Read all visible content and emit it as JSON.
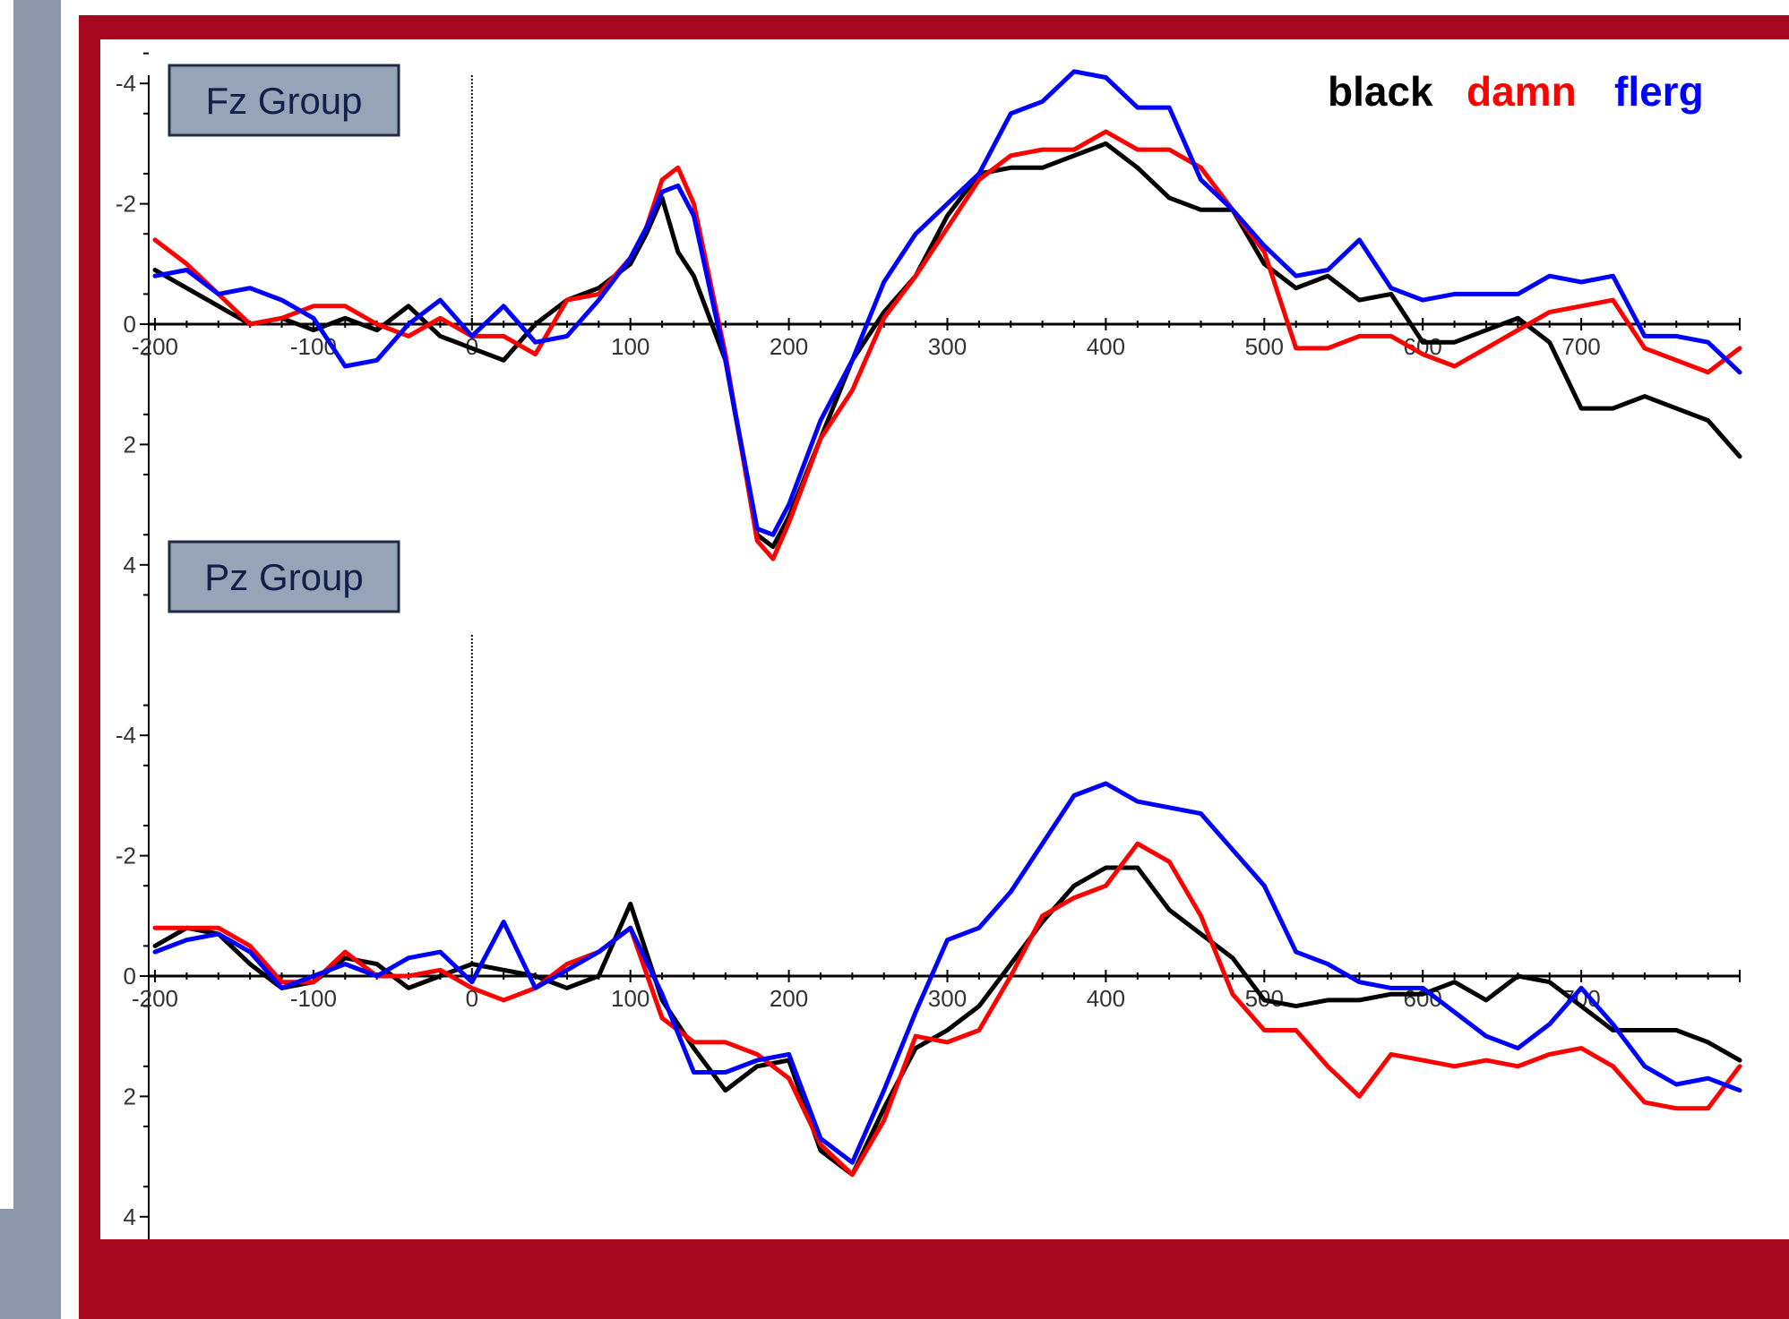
{
  "chart_data": [
    {
      "type": "line",
      "panel_label": "Fz Group",
      "xlim": [
        -200,
        800
      ],
      "ylim": [
        -4.5,
        4.5
      ],
      "y_inverted": true,
      "xticks": [
        -200,
        -100,
        0,
        100,
        200,
        300,
        400,
        500,
        600,
        700
      ],
      "xtick_labels": [
        "-200",
        "-100",
        "0",
        "100",
        "200",
        "300",
        "400",
        "500",
        "600",
        "700"
      ],
      "yticks": [
        -4,
        -2,
        0,
        2,
        4
      ],
      "ytick_labels": [
        "-4",
        "-2",
        "0",
        "2",
        "4"
      ],
      "legend_placement": "top-right",
      "series": [
        {
          "name": "black",
          "color": "#000000",
          "x": [
            -200,
            -180,
            -160,
            -140,
            -120,
            -100,
            -80,
            -60,
            -40,
            -20,
            0,
            20,
            40,
            60,
            80,
            100,
            110,
            120,
            130,
            140,
            160,
            180,
            190,
            200,
            220,
            240,
            260,
            280,
            300,
            320,
            340,
            360,
            380,
            400,
            420,
            440,
            460,
            480,
            500,
            520,
            540,
            560,
            580,
            600,
            620,
            640,
            660,
            680,
            700,
            720,
            740,
            760,
            780,
            800
          ],
          "y": [
            -0.9,
            -0.6,
            -0.3,
            0.0,
            -0.1,
            0.1,
            -0.1,
            0.1,
            -0.3,
            0.2,
            0.4,
            0.6,
            0.0,
            -0.4,
            -0.6,
            -1.0,
            -1.5,
            -2.1,
            -1.2,
            -0.8,
            0.6,
            3.5,
            3.7,
            3.2,
            1.9,
            0.6,
            -0.2,
            -0.8,
            -1.8,
            -2.5,
            -2.6,
            -2.6,
            -2.8,
            -3.0,
            -2.6,
            -2.1,
            -1.9,
            -1.9,
            -1.0,
            -0.6,
            -0.8,
            -0.4,
            -0.5,
            0.3,
            0.3,
            0.1,
            -0.1,
            0.3,
            1.4,
            1.4,
            1.2,
            1.4,
            1.6,
            2.2
          ]
        },
        {
          "name": "damn",
          "color": "#ff0000",
          "x": [
            -200,
            -180,
            -160,
            -140,
            -120,
            -100,
            -80,
            -60,
            -40,
            -20,
            0,
            20,
            40,
            60,
            80,
            100,
            110,
            120,
            130,
            140,
            160,
            180,
            190,
            200,
            220,
            240,
            260,
            280,
            300,
            320,
            340,
            360,
            380,
            400,
            420,
            440,
            460,
            480,
            500,
            520,
            540,
            560,
            580,
            600,
            620,
            640,
            660,
            680,
            700,
            720,
            740,
            760,
            780,
            800
          ],
          "y": [
            -1.4,
            -1.0,
            -0.5,
            0.0,
            -0.1,
            -0.3,
            -0.3,
            0.0,
            0.2,
            -0.1,
            0.2,
            0.2,
            0.5,
            -0.4,
            -0.5,
            -1.1,
            -1.6,
            -2.4,
            -2.6,
            -2.0,
            0.5,
            3.6,
            3.9,
            3.3,
            1.9,
            1.1,
            -0.1,
            -0.8,
            -1.6,
            -2.4,
            -2.8,
            -2.9,
            -2.9,
            -3.2,
            -2.9,
            -2.9,
            -2.6,
            -1.9,
            -1.2,
            0.4,
            0.4,
            0.2,
            0.2,
            0.5,
            0.7,
            0.4,
            0.1,
            -0.2,
            -0.3,
            -0.4,
            0.4,
            0.6,
            0.8,
            0.4
          ]
        },
        {
          "name": "flerg",
          "color": "#0000ff",
          "x": [
            -200,
            -180,
            -160,
            -140,
            -120,
            -100,
            -80,
            -60,
            -40,
            -20,
            0,
            20,
            40,
            60,
            80,
            100,
            110,
            120,
            130,
            140,
            160,
            180,
            190,
            200,
            220,
            240,
            260,
            280,
            300,
            320,
            340,
            360,
            380,
            400,
            420,
            440,
            460,
            480,
            500,
            520,
            540,
            560,
            580,
            600,
            620,
            640,
            660,
            680,
            700,
            720,
            740,
            760,
            780,
            800
          ],
          "y": [
            -0.8,
            -0.9,
            -0.5,
            -0.6,
            -0.4,
            -0.1,
            0.7,
            0.6,
            0.0,
            -0.4,
            0.2,
            -0.3,
            0.3,
            0.2,
            -0.4,
            -1.1,
            -1.6,
            -2.2,
            -2.3,
            -1.8,
            0.6,
            3.4,
            3.5,
            3.0,
            1.6,
            0.6,
            -0.7,
            -1.5,
            -2.0,
            -2.5,
            -3.5,
            -3.7,
            -4.2,
            -4.1,
            -3.6,
            -3.6,
            -2.4,
            -1.9,
            -1.3,
            -0.8,
            -0.9,
            -1.4,
            -0.6,
            -0.4,
            -0.5,
            -0.5,
            -0.5,
            -0.8,
            -0.7,
            -0.8,
            0.2,
            0.2,
            0.3,
            0.8
          ]
        }
      ]
    },
    {
      "type": "line",
      "panel_label": "Pz Group",
      "xlim": [
        -200,
        800
      ],
      "ylim": [
        -4.5,
        4.5
      ],
      "y_inverted": true,
      "xticks": [
        -200,
        -100,
        0,
        100,
        200,
        300,
        400,
        500,
        600,
        700
      ],
      "xtick_labels": [
        "-200",
        "-100",
        "0",
        "100",
        "200",
        "300",
        "400",
        "500",
        "600",
        "700"
      ],
      "yticks": [
        -4,
        -2,
        0,
        2,
        4
      ],
      "ytick_labels": [
        "-4",
        "-2",
        "0",
        "2",
        "4"
      ],
      "series": [
        {
          "name": "black",
          "color": "#000000",
          "x": [
            -200,
            -180,
            -160,
            -140,
            -120,
            -100,
            -80,
            -60,
            -40,
            -20,
            0,
            20,
            40,
            60,
            80,
            100,
            120,
            140,
            160,
            180,
            200,
            220,
            240,
            260,
            280,
            300,
            320,
            340,
            360,
            380,
            400,
            420,
            440,
            460,
            480,
            500,
            520,
            540,
            560,
            580,
            600,
            620,
            640,
            660,
            680,
            700,
            720,
            740,
            760,
            780,
            800
          ],
          "y": [
            -0.5,
            -0.8,
            -0.7,
            -0.2,
            0.2,
            0.1,
            -0.3,
            -0.2,
            0.2,
            0.0,
            -0.2,
            -0.1,
            0.0,
            0.2,
            0.0,
            -1.2,
            0.4,
            1.2,
            1.9,
            1.5,
            1.4,
            2.9,
            3.3,
            2.2,
            1.2,
            0.9,
            0.5,
            -0.2,
            -0.9,
            -1.5,
            -1.8,
            -1.8,
            -1.1,
            -0.7,
            -0.3,
            0.4,
            0.5,
            0.4,
            0.4,
            0.3,
            0.3,
            0.1,
            0.4,
            0.0,
            0.1,
            0.5,
            0.9,
            0.9,
            0.9,
            1.1,
            1.4
          ]
        },
        {
          "name": "damn",
          "color": "#ff0000",
          "x": [
            -200,
            -180,
            -160,
            -140,
            -120,
            -100,
            -80,
            -60,
            -40,
            -20,
            0,
            20,
            40,
            60,
            80,
            100,
            120,
            140,
            160,
            180,
            200,
            220,
            240,
            260,
            280,
            300,
            320,
            340,
            360,
            380,
            400,
            420,
            440,
            460,
            480,
            500,
            520,
            540,
            560,
            580,
            600,
            620,
            640,
            660,
            680,
            700,
            720,
            740,
            760,
            780,
            800
          ],
          "y": [
            -0.8,
            -0.8,
            -0.8,
            -0.5,
            0.1,
            0.1,
            -0.4,
            0.0,
            0.0,
            -0.1,
            0.2,
            0.4,
            0.2,
            -0.2,
            -0.4,
            -0.8,
            0.7,
            1.1,
            1.1,
            1.3,
            1.7,
            2.8,
            3.3,
            2.4,
            1.0,
            1.1,
            0.9,
            0.0,
            -1.0,
            -1.3,
            -1.5,
            -2.2,
            -1.9,
            -1.0,
            0.3,
            0.9,
            0.9,
            1.5,
            2.0,
            1.3,
            1.4,
            1.5,
            1.4,
            1.5,
            1.3,
            1.2,
            1.5,
            2.1,
            2.2,
            2.2,
            1.5
          ]
        },
        {
          "name": "flerg",
          "color": "#0000ff",
          "x": [
            -200,
            -180,
            -160,
            -140,
            -120,
            -100,
            -80,
            -60,
            -40,
            -20,
            0,
            20,
            40,
            60,
            80,
            100,
            120,
            140,
            160,
            180,
            200,
            220,
            240,
            260,
            280,
            300,
            320,
            340,
            360,
            380,
            400,
            420,
            440,
            460,
            480,
            500,
            520,
            540,
            560,
            580,
            600,
            620,
            640,
            660,
            680,
            700,
            720,
            740,
            760,
            780,
            800
          ],
          "y": [
            -0.4,
            -0.6,
            -0.7,
            -0.4,
            0.2,
            0.0,
            -0.2,
            0.0,
            -0.3,
            -0.4,
            0.1,
            -0.9,
            0.2,
            -0.1,
            -0.4,
            -0.8,
            0.3,
            1.6,
            1.6,
            1.4,
            1.3,
            2.7,
            3.1,
            1.9,
            0.6,
            -0.6,
            -0.8,
            -1.4,
            -2.2,
            -3.0,
            -3.2,
            -2.9,
            -2.8,
            -2.7,
            -2.1,
            -1.5,
            -0.4,
            -0.2,
            0.1,
            0.2,
            0.2,
            0.6,
            1.0,
            1.2,
            0.8,
            0.2,
            0.8,
            1.5,
            1.8,
            1.7,
            1.9
          ]
        }
      ]
    }
  ],
  "legend": [
    {
      "name": "black",
      "color": "#000000"
    },
    {
      "name": "damn",
      "color": "#ff0000"
    },
    {
      "name": "flerg",
      "color": "#0000ff"
    }
  ]
}
